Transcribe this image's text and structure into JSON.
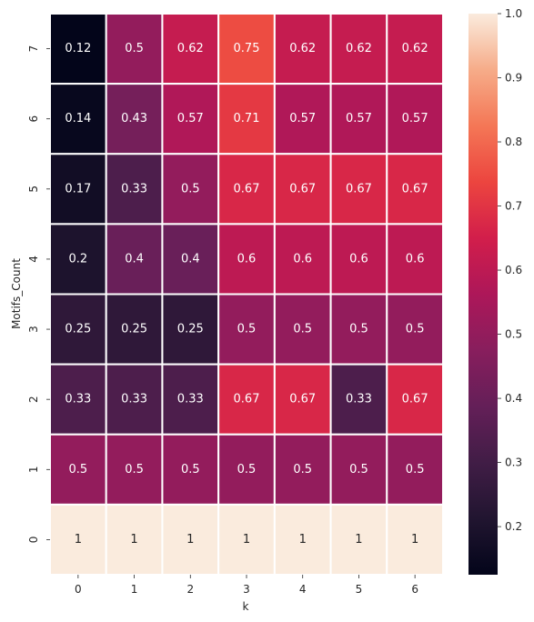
{
  "chart_data": {
    "type": "heatmap",
    "title": "",
    "xlabel": "k",
    "ylabel": "Motifs_Count",
    "x_categories": [
      "0",
      "1",
      "2",
      "3",
      "4",
      "5",
      "6"
    ],
    "y_categories_top_to_bottom": [
      "7",
      "6",
      "5",
      "4",
      "3",
      "2",
      "1",
      "0"
    ],
    "values": [
      [
        0.12,
        0.5,
        0.62,
        0.75,
        0.62,
        0.62,
        0.62
      ],
      [
        0.14,
        0.43,
        0.57,
        0.71,
        0.57,
        0.57,
        0.57
      ],
      [
        0.17,
        0.33,
        0.5,
        0.67,
        0.67,
        0.67,
        0.67
      ],
      [
        0.2,
        0.4,
        0.4,
        0.6,
        0.6,
        0.6,
        0.6
      ],
      [
        0.25,
        0.25,
        0.25,
        0.5,
        0.5,
        0.5,
        0.5
      ],
      [
        0.33,
        0.33,
        0.33,
        0.67,
        0.67,
        0.33,
        0.67
      ],
      [
        0.5,
        0.5,
        0.5,
        0.5,
        0.5,
        0.5,
        0.5
      ],
      [
        1,
        1,
        1,
        1,
        1,
        1,
        1
      ]
    ],
    "annotations": [
      [
        "0.12",
        "0.5",
        "0.62",
        "0.75",
        "0.62",
        "0.62",
        "0.62"
      ],
      [
        "0.14",
        "0.43",
        "0.57",
        "0.71",
        "0.57",
        "0.57",
        "0.57"
      ],
      [
        "0.17",
        "0.33",
        "0.5",
        "0.67",
        "0.67",
        "0.67",
        "0.67"
      ],
      [
        "0.2",
        "0.4",
        "0.4",
        "0.6",
        "0.6",
        "0.6",
        "0.6"
      ],
      [
        "0.25",
        "0.25",
        "0.25",
        "0.5",
        "0.5",
        "0.5",
        "0.5"
      ],
      [
        "0.33",
        "0.33",
        "0.33",
        "0.67",
        "0.67",
        "0.33",
        "0.67"
      ],
      [
        "0.5",
        "0.5",
        "0.5",
        "0.5",
        "0.5",
        "0.5",
        "0.5"
      ],
      [
        "1",
        "1",
        "1",
        "1",
        "1",
        "1",
        "1"
      ]
    ],
    "colorbar": {
      "vmin": 0.125,
      "vmax": 1.0,
      "ticks": [
        "0.2",
        "0.3",
        "0.4",
        "0.5",
        "0.6",
        "0.7",
        "0.8",
        "0.9",
        "1.0"
      ],
      "tick_values": [
        0.2,
        0.3,
        0.4,
        0.5,
        0.6,
        0.7,
        0.8,
        0.9,
        1.0
      ]
    },
    "colormap": "rocket",
    "grid": false,
    "cell_separator_color": "#ffffff"
  }
}
